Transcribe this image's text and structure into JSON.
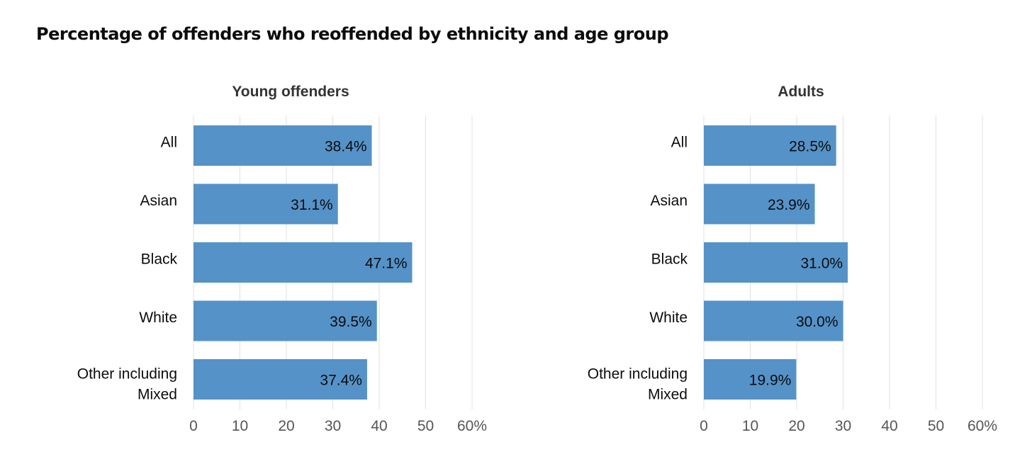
{
  "title": "Percentage of offenders who reoffended by ethnicity and age group",
  "colors": {
    "bar": "#5592c8",
    "grid": "#e0e0e0",
    "text": "#0b0c0c",
    "tick_text": "#555555"
  },
  "chart_data": [
    {
      "type": "bar",
      "orientation": "horizontal",
      "title": "Young offenders",
      "categories": [
        "All",
        "Asian",
        "Black",
        "White",
        "Other including Mixed"
      ],
      "values": [
        38.4,
        31.1,
        47.1,
        39.5,
        37.4
      ],
      "data_labels": [
        "38.4%",
        "31.1%",
        "47.1%",
        "39.5%",
        "37.4%"
      ],
      "xlim": [
        0,
        60
      ],
      "xticks": [
        "0",
        "10",
        "20",
        "30",
        "40",
        "50",
        "60%"
      ],
      "grid": true,
      "legend": "none"
    },
    {
      "type": "bar",
      "orientation": "horizontal",
      "title": "Adults",
      "categories": [
        "All",
        "Asian",
        "Black",
        "White",
        "Other including Mixed"
      ],
      "values": [
        28.5,
        23.9,
        31.0,
        30.0,
        19.9
      ],
      "data_labels": [
        "28.5%",
        "23.9%",
        "31.0%",
        "30.0%",
        "19.9%"
      ],
      "xlim": [
        0,
        60
      ],
      "xticks": [
        "0",
        "10",
        "20",
        "30",
        "40",
        "50",
        "60%"
      ],
      "grid": true,
      "legend": "none"
    }
  ]
}
